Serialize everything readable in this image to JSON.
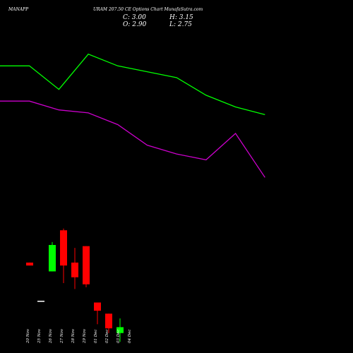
{
  "header": {
    "symbol": "MANAPP",
    "title": "URAM 207.50  CE Options  Chart MunafaSutra.com"
  },
  "ohlc": {
    "close": "C: 3.00",
    "high": "H: 3.15",
    "open": "O: 2.90",
    "low": "L: 2.75"
  },
  "colors": {
    "background": "#000000",
    "up": "#00ff00",
    "down": "#ff0000",
    "line_upper": "#00ff00",
    "line_lower": "#cc00cc",
    "text": "#ffffff"
  },
  "chart_data": {
    "type": "candlestick",
    "categories": [
      "20 Nov",
      "25 Nov",
      "26 Nov",
      "27 Nov",
      "28 Nov",
      "29 Nov",
      "01 Dec",
      "02 Dec",
      "03 Dec",
      "04 Dec"
    ],
    "candles": [
      {
        "date": "20 Nov",
        "open": 4.1,
        "high": 4.1,
        "low": 4.05,
        "close": 4.05,
        "dir": "down"
      },
      {
        "date": "25 Nov",
        "open": 3.45,
        "high": 3.45,
        "low": 3.45,
        "close": 3.45,
        "dir": "flat"
      },
      {
        "date": "26 Nov",
        "open": 3.95,
        "high": 4.45,
        "low": 3.95,
        "close": 4.4,
        "dir": "up"
      },
      {
        "date": "27 Nov",
        "open": 4.65,
        "high": 4.68,
        "low": 3.75,
        "close": 4.05,
        "dir": "down"
      },
      {
        "date": "28 Nov",
        "open": 4.1,
        "high": 4.35,
        "low": 3.65,
        "close": 3.85,
        "dir": "down"
      },
      {
        "date": "29 Nov",
        "open": 4.38,
        "high": 4.38,
        "low": 3.68,
        "close": 3.73,
        "dir": "down"
      },
      {
        "date": "01 Dec",
        "open": 3.42,
        "high": 3.42,
        "low": 3.05,
        "close": 3.28,
        "dir": "down"
      },
      {
        "date": "02 Dec",
        "open": 3.23,
        "high": 3.23,
        "low": 2.9,
        "close": 2.98,
        "dir": "down"
      },
      {
        "date": "03 Dec",
        "open": 2.9,
        "high": 3.15,
        "low": 2.75,
        "close": 3.0,
        "dir": "up"
      }
    ],
    "line_upper": {
      "x": [
        0,
        1,
        2,
        3,
        4,
        5,
        6,
        7,
        8,
        9
      ],
      "values": [
        7.45,
        7.45,
        7.05,
        7.65,
        7.45,
        7.35,
        7.25,
        6.95,
        6.75,
        6.62
      ]
    },
    "line_lower": {
      "x": [
        0,
        1,
        2,
        3,
        4,
        5,
        6,
        7,
        8,
        9
      ],
      "values": [
        6.85,
        6.85,
        6.7,
        6.65,
        6.45,
        6.1,
        5.95,
        5.85,
        6.3,
        5.55
      ]
    },
    "ylim": [
      2.5,
      8.5
    ]
  }
}
